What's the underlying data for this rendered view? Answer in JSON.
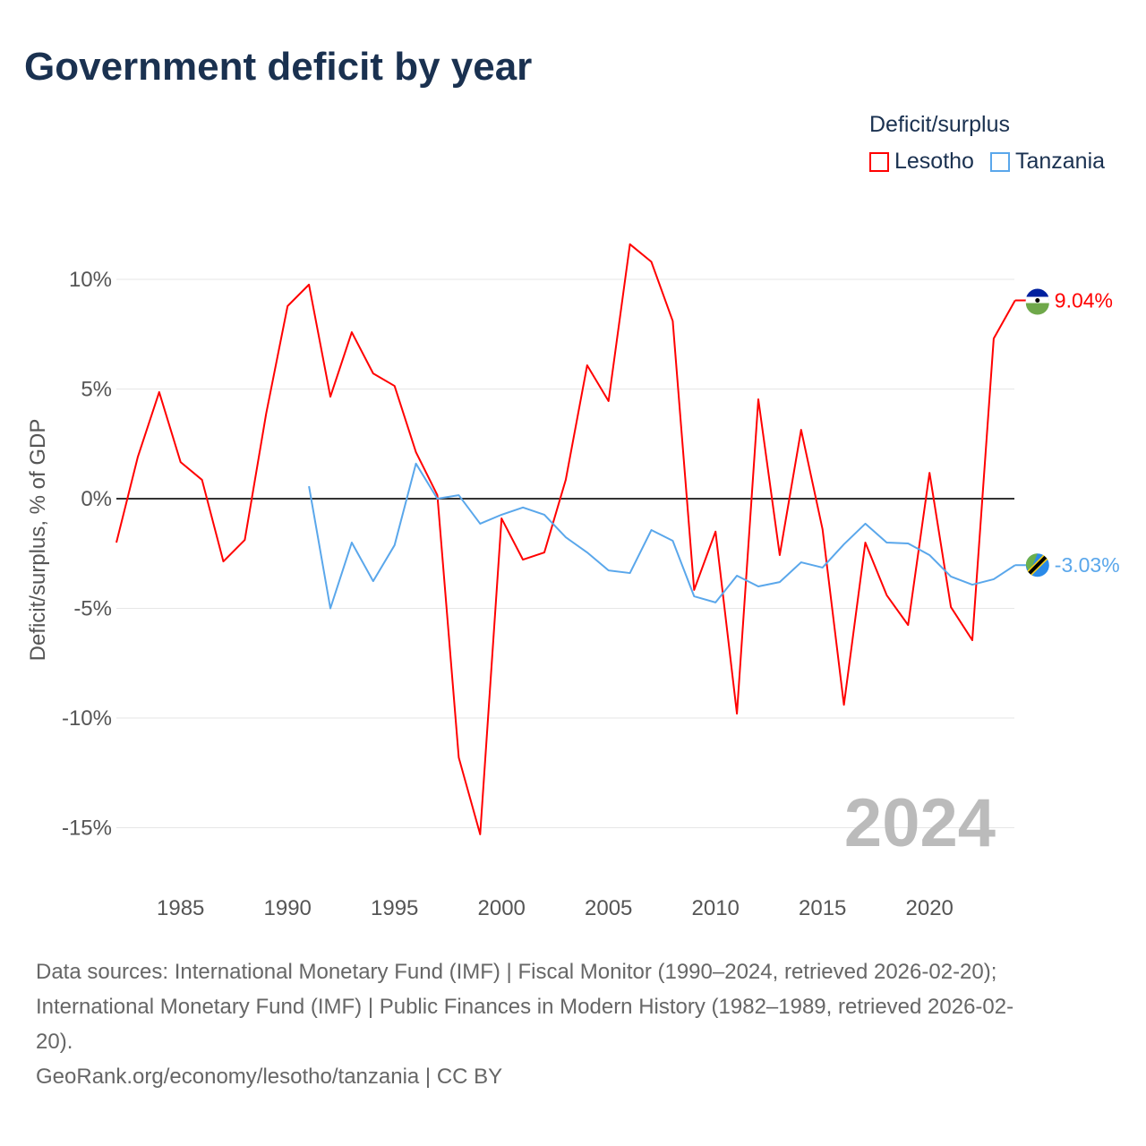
{
  "chart_data": {
    "type": "line",
    "title": "Government deficit by year",
    "ylabel": "Deficit/surplus, % of GDP",
    "xlabel": "",
    "legend_title": "Deficit/surplus",
    "legend_position": "top-right",
    "ylim": [
      -17,
      12.5
    ],
    "xlim": [
      1982,
      2024
    ],
    "y_ticks": [
      10,
      5,
      0,
      -5,
      -10,
      -15
    ],
    "y_tick_labels": [
      "10%",
      "5%",
      "0%",
      "-5%",
      "-10%",
      "-15%"
    ],
    "x_ticks": [
      1985,
      1990,
      1995,
      2000,
      2005,
      2010,
      2015,
      2020
    ],
    "x_tick_labels": [
      "1985",
      "1990",
      "1995",
      "2000",
      "2005",
      "2010",
      "2015",
      "2020"
    ],
    "grid": true,
    "year_watermark": "2024",
    "series": [
      {
        "name": "Lesotho",
        "color": "#ff0000",
        "start_year": 1982,
        "end_label": "9.04%",
        "values": [
          -2.0,
          1.9,
          4.86,
          1.67,
          0.86,
          -2.86,
          -1.88,
          3.88,
          8.78,
          9.76,
          4.65,
          7.59,
          5.71,
          5.14,
          2.12,
          0.16,
          -11.8,
          -15.3,
          -0.9,
          -2.78,
          -2.45,
          0.86,
          6.08,
          4.45,
          11.6,
          10.8,
          8.1,
          -4.16,
          -1.5,
          -9.8,
          4.53,
          -2.57,
          3.14,
          -1.39,
          -9.4,
          -2.0,
          -4.4,
          -5.76,
          1.18,
          -4.94,
          -6.45,
          7.3,
          9.04
        ]
      },
      {
        "name": "Tanzania",
        "color": "#5aa7eb",
        "start_year": 1991,
        "end_label": "-3.03%",
        "values": [
          0.57,
          -5.0,
          -2.0,
          -3.76,
          -2.12,
          1.6,
          0,
          0.16,
          -1.14,
          -0.73,
          -0.4,
          -0.73,
          -1.76,
          -2.45,
          -3.27,
          -3.39,
          -1.43,
          -1.92,
          -4.45,
          -4.73,
          -3.51,
          -4.0,
          -3.8,
          -2.9,
          -3.14,
          -2.08,
          -1.14,
          -2.0,
          -2.04,
          -2.57,
          -3.55,
          -3.92,
          -3.67,
          -3.03
        ]
      }
    ]
  },
  "source": {
    "line1": "Data sources: International Monetary Fund (IMF) | Fiscal Monitor (1990–2024, retrieved 2026-02-20);",
    "line2": "International Monetary Fund (IMF) | Public Finances in Modern History (1982–1989, retrieved 2026-02-",
    "line3": "20).",
    "line4": "GeoRank.org/economy/lesotho/tanzania | CC BY"
  }
}
